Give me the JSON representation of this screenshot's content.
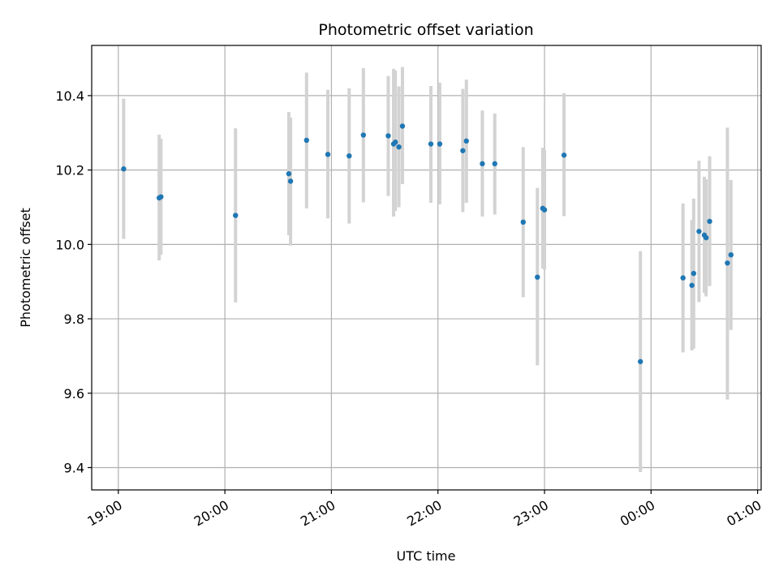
{
  "chart_data": {
    "type": "scatter",
    "title": "Photometric offset variation",
    "xlabel": "UTC time",
    "ylabel": "Photometric offset",
    "ylim": [
      9.34,
      10.535
    ],
    "xlim": [
      "18:45",
      "01:02"
    ],
    "x_ticks": [
      "19:00",
      "20:00",
      "21:00",
      "22:00",
      "23:00",
      "00:00",
      "01:00"
    ],
    "y_ticks": [
      "9.4",
      "9.6",
      "9.8",
      "10.0",
      "10.2",
      "10.4"
    ],
    "grid": true,
    "colors": {
      "point": "#1f77b4",
      "errorbar": "#d3d3d3",
      "grid": "#b0b0b0"
    },
    "points": [
      {
        "x": "19:03",
        "y": 10.203,
        "low": 10.015,
        "high": 10.392
      },
      {
        "x": "19:23",
        "y": 10.125,
        "low": 9.957,
        "high": 10.295
      },
      {
        "x": "19:24",
        "y": 10.128,
        "low": 9.972,
        "high": 10.284
      },
      {
        "x": "20:06",
        "y": 10.078,
        "low": 9.844,
        "high": 10.312
      },
      {
        "x": "20:36",
        "y": 10.19,
        "low": 10.025,
        "high": 10.356
      },
      {
        "x": "20:37",
        "y": 10.17,
        "low": 9.997,
        "high": 10.341
      },
      {
        "x": "20:46",
        "y": 10.28,
        "low": 10.097,
        "high": 10.462
      },
      {
        "x": "20:58",
        "y": 10.242,
        "low": 10.07,
        "high": 10.416
      },
      {
        "x": "21:10",
        "y": 10.238,
        "low": 10.056,
        "high": 10.42
      },
      {
        "x": "21:18",
        "y": 10.294,
        "low": 10.113,
        "high": 10.474
      },
      {
        "x": "21:32",
        "y": 10.292,
        "low": 10.13,
        "high": 10.453
      },
      {
        "x": "21:35",
        "y": 10.27,
        "low": 10.075,
        "high": 10.472
      },
      {
        "x": "21:36",
        "y": 10.275,
        "low": 10.09,
        "high": 10.468
      },
      {
        "x": "21:38",
        "y": 10.262,
        "low": 10.1,
        "high": 10.425
      },
      {
        "x": "21:40",
        "y": 10.318,
        "low": 10.162,
        "high": 10.477
      },
      {
        "x": "21:56",
        "y": 10.27,
        "low": 10.112,
        "high": 10.426
      },
      {
        "x": "22:01",
        "y": 10.27,
        "low": 10.108,
        "high": 10.435
      },
      {
        "x": "22:14",
        "y": 10.252,
        "low": 10.087,
        "high": 10.418
      },
      {
        "x": "22:16",
        "y": 10.278,
        "low": 10.112,
        "high": 10.443
      },
      {
        "x": "22:25",
        "y": 10.217,
        "low": 10.075,
        "high": 10.36
      },
      {
        "x": "22:32",
        "y": 10.217,
        "low": 10.08,
        "high": 10.352
      },
      {
        "x": "22:48",
        "y": 10.06,
        "low": 9.858,
        "high": 10.262
      },
      {
        "x": "22:56",
        "y": 9.912,
        "low": 9.675,
        "high": 10.152
      },
      {
        "x": "22:59",
        "y": 10.097,
        "low": 9.935,
        "high": 10.26
      },
      {
        "x": "23:00",
        "y": 10.093,
        "low": 9.932,
        "high": 10.254
      },
      {
        "x": "23:11",
        "y": 10.24,
        "low": 10.076,
        "high": 10.407
      },
      {
        "x": "23:54",
        "y": 9.685,
        "low": 9.388,
        "high": 9.982
      },
      {
        "x": "00:18",
        "y": 9.91,
        "low": 9.71,
        "high": 10.11
      },
      {
        "x": "00:23",
        "y": 9.89,
        "low": 9.715,
        "high": 10.066
      },
      {
        "x": "00:24",
        "y": 9.922,
        "low": 9.72,
        "high": 10.123
      },
      {
        "x": "00:27",
        "y": 10.035,
        "low": 9.845,
        "high": 10.225
      },
      {
        "x": "00:30",
        "y": 10.025,
        "low": 9.87,
        "high": 10.182
      },
      {
        "x": "00:31",
        "y": 10.018,
        "low": 9.86,
        "high": 10.175
      },
      {
        "x": "00:33",
        "y": 10.062,
        "low": 9.888,
        "high": 10.237
      },
      {
        "x": "00:43",
        "y": 9.95,
        "low": 9.583,
        "high": 10.314
      },
      {
        "x": "00:45",
        "y": 9.972,
        "low": 9.77,
        "high": 10.173
      }
    ]
  }
}
